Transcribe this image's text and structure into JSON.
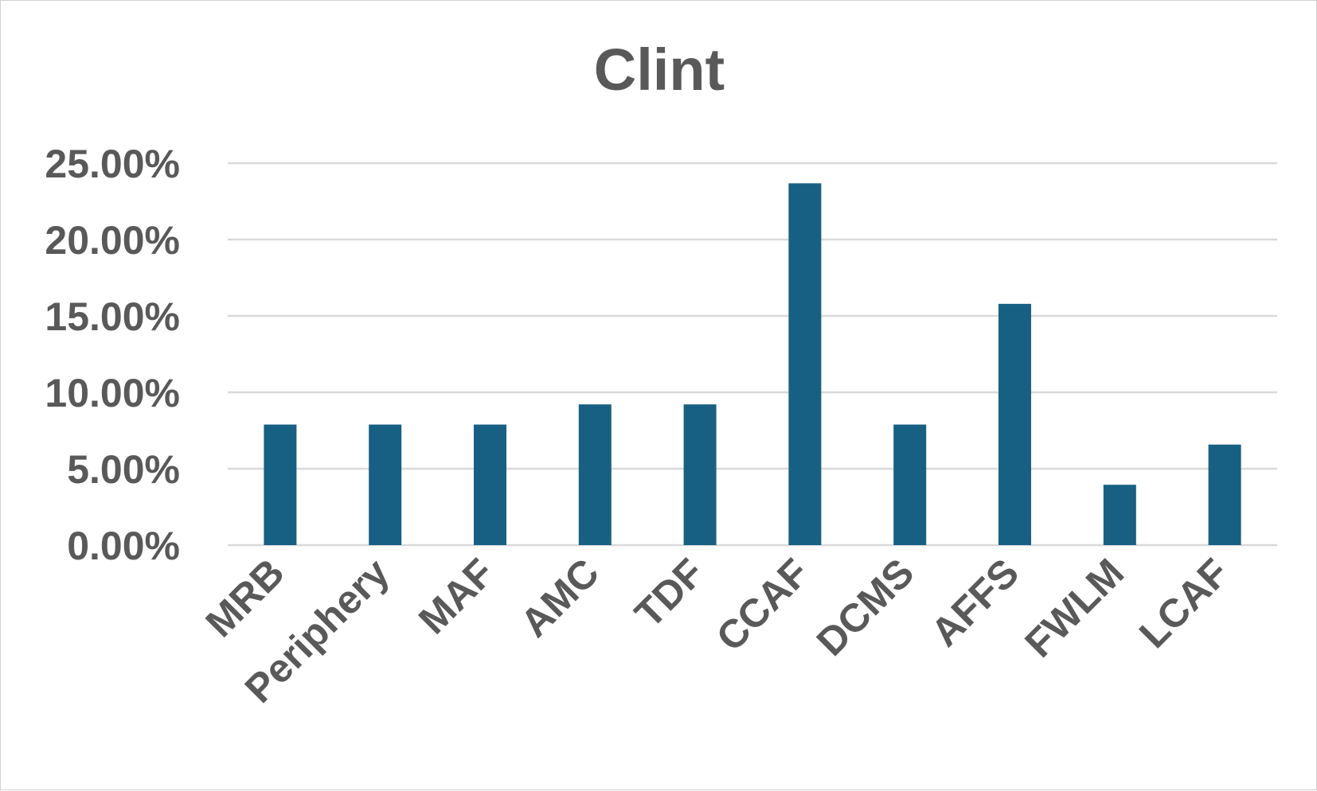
{
  "chart_data": {
    "type": "bar",
    "title": "Clint",
    "categories": [
      "MRB",
      "Periphery",
      "MAF",
      "AMC",
      "TDF",
      "CCAF",
      "DCMS",
      "AFFS",
      "FWLM",
      "LCAF"
    ],
    "values": [
      7.89,
      7.89,
      7.89,
      9.21,
      9.21,
      23.68,
      7.89,
      15.79,
      3.95,
      6.58
    ],
    "y_tick_labels": [
      "0.00%",
      "5.00%",
      "10.00%",
      "15.00%",
      "20.00%",
      "25.00%"
    ],
    "ylim": [
      0,
      25
    ],
    "y_unit": "percent",
    "grid": true,
    "legend": "none",
    "colors": {
      "bar": "#176083",
      "text": "#595959",
      "grid": "#d9d9d9"
    }
  }
}
